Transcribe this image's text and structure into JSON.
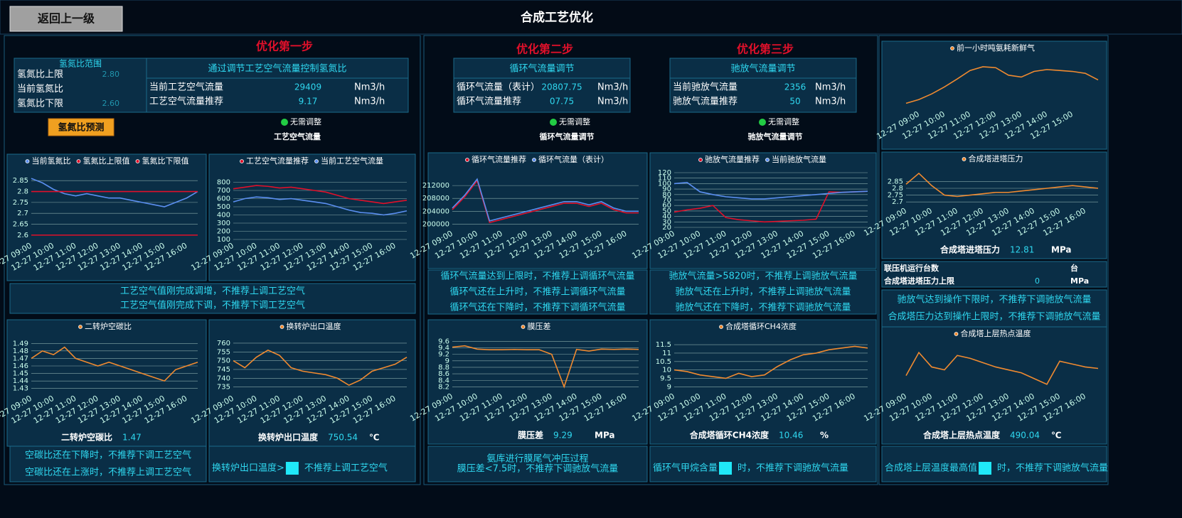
{
  "header": {
    "back_button": "返回上一级",
    "title": "合成工艺优化"
  },
  "step1": {
    "title": "优化第一步",
    "ratio_box": {
      "title": "氢氮比范围",
      "rows": [
        {
          "label": "氢氮比上限",
          "value": "2.80"
        },
        {
          "label": "当前氢氮比"
        },
        {
          "label": "氢氮比下限",
          "value": "2.60"
        }
      ]
    },
    "air_box": {
      "title": "通过调节工艺空气流量控制氢氮比",
      "rows": [
        {
          "label": "当前工艺空气流量",
          "value": "29409",
          "unit": "Nm3/h"
        },
        {
          "label": "工艺空气流量推荐",
          "value": "9.17",
          "unit": "Nm3/h"
        }
      ]
    },
    "predict_button": "氢氮比预测",
    "status": "无需调整",
    "status_label": "工艺空气流量"
  },
  "step2": {
    "title": "优化第二步",
    "box": {
      "title": "循环气流量调节",
      "rows": [
        {
          "label": "循环气流量（表计）",
          "value": "20807.75",
          "unit": "Nm3/h"
        },
        {
          "label": "循环气流量推荐",
          "value": "07.75",
          "unit": "Nm3/h"
        }
      ]
    },
    "status": "无需调整",
    "status_label": "循环气流量调节"
  },
  "step3": {
    "title": "优化第三步",
    "box": {
      "title": "驰放气流量调节",
      "rows": [
        {
          "label": "当前驰放气流量",
          "value": "2356",
          "unit": "Nm3/h"
        },
        {
          "label": "驰放气流量推荐",
          "value": "50",
          "unit": "Nm3/h"
        }
      ]
    },
    "status": "无需调整",
    "status_label": "驰放气流量调节"
  },
  "charts": [
    {
      "type": "line",
      "categories": [
        "12-27 09:00",
        null,
        "12-27 10:00",
        null,
        "12-27 11:00",
        null,
        "12-27 12:00",
        null,
        "12-27 13:00",
        null,
        "12-27 14:00",
        null,
        "12-27 15:00",
        null,
        "12-27 16:00",
        null
      ],
      "ylim": [
        2.58,
        2.88
      ],
      "yticks": [
        2.6,
        2.65,
        2.7,
        2.75,
        2.8,
        2.85
      ],
      "series": [
        {
          "name": "当前氢氮比",
          "color": "#5b8ff0",
          "values": [
            2.86,
            2.84,
            2.81,
            2.79,
            2.78,
            2.79,
            2.78,
            2.77,
            2.77,
            2.76,
            2.75,
            2.74,
            2.73,
            2.75,
            2.77,
            2.8
          ]
        },
        {
          "name": "氢氮比上限值",
          "color": "#e0102a",
          "values": [
            2.8,
            2.8,
            2.8,
            2.8,
            2.8,
            2.8,
            2.8,
            2.8,
            2.8,
            2.8,
            2.8,
            2.8,
            2.8,
            2.8,
            2.8,
            2.8
          ]
        },
        {
          "name": "氢氮比下限值",
          "color": "#e0102a",
          "values": [
            2.6,
            2.6,
            2.6,
            2.6,
            2.6,
            2.6,
            2.6,
            2.6,
            2.6,
            2.6,
            2.6,
            2.6,
            2.6,
            2.6,
            2.6,
            2.6
          ]
        }
      ]
    },
    {
      "type": "line",
      "categories": [
        "12-27 09:00",
        null,
        "12-27 10:00",
        null,
        "12-27 11:00",
        null,
        "12-27 12:00",
        null,
        "12-27 13:00",
        null,
        "12-27 14:00",
        null,
        "12-27 15:00",
        null,
        "12-27 16:00",
        null
      ],
      "ylim": [
        100,
        900
      ],
      "yticks": [
        100,
        200,
        300,
        400,
        500,
        600,
        700,
        800
      ],
      "series": [
        {
          "name": "工艺空气流量推荐",
          "color": "#e0102a",
          "values": [
            720,
            740,
            760,
            750,
            730,
            740,
            720,
            700,
            680,
            640,
            600,
            580,
            560,
            540,
            560,
            580
          ]
        },
        {
          "name": "当前工艺空气流量",
          "color": "#5b8ff0",
          "values": [
            560,
            600,
            620,
            610,
            590,
            600,
            580,
            560,
            540,
            500,
            460,
            430,
            420,
            400,
            420,
            450
          ]
        }
      ]
    },
    {
      "type": "line",
      "categories": [
        "12-27 09:00",
        null,
        "12-27 10:00",
        null,
        "12-27 11:00",
        null,
        "12-27 12:00",
        null,
        "12-27 13:00",
        null,
        "12-27 14:00",
        null,
        "12-27 15:00",
        null,
        "12-27 16:00",
        null
      ],
      "ylim": [
        199000,
        216000
      ],
      "yticks": [
        200000,
        204000,
        208000,
        212000
      ],
      "series": [
        {
          "name": "循环气流量推荐",
          "color": "#e0102a",
          "values": [
            204500,
            208500,
            213500,
            200500,
            201500,
            202500,
            203500,
            204500,
            205500,
            206500,
            206500,
            205500,
            206500,
            204500,
            203500,
            203500
          ]
        },
        {
          "name": "循环气流量（表计）",
          "color": "#5b8ff0",
          "values": [
            205000,
            209000,
            214000,
            201000,
            202000,
            203000,
            204000,
            205000,
            206000,
            207000,
            207000,
            206000,
            207000,
            205000,
            204000,
            204000
          ]
        }
      ]
    },
    {
      "type": "line",
      "categories": [
        "12-27 09:00",
        null,
        "12-27 10:00",
        null,
        "12-27 11:00",
        null,
        "12-27 12:00",
        null,
        "12-27 13:00",
        null,
        "12-27 14:00",
        null,
        "12-27 15:00",
        null,
        "12-27 16:00",
        null
      ],
      "ylim": [
        20,
        120
      ],
      "yticks": [
        20,
        30,
        40,
        50,
        60,
        70,
        80,
        90,
        100,
        110,
        120
      ],
      "series": [
        {
          "name": "驰放气流量推荐",
          "color": "#e0102a",
          "values": [
            48,
            52,
            55,
            60,
            38,
            34,
            32,
            30,
            31,
            32,
            33,
            35,
            85,
            84,
            85,
            86
          ]
        },
        {
          "name": "当前驰放气流量",
          "color": "#5b8ff0",
          "values": [
            100,
            102,
            85,
            80,
            76,
            74,
            72,
            72,
            74,
            76,
            78,
            80,
            82,
            84,
            85,
            86
          ]
        }
      ]
    },
    {
      "type": "line",
      "categories": [
        null,
        "12-27 09:00",
        null,
        "12-27 10:00",
        null,
        "12-27 11:00",
        null,
        "12-27 12:00",
        null,
        "12-27 13:00",
        null,
        "12-27 14:00",
        null,
        "12-27 15:00",
        null,
        null
      ],
      "ylim": [
        0,
        100
      ],
      "series": [
        {
          "name": "前一小时吨氨耗新鲜气",
          "color": "#f08a30",
          "values": [
            10,
            18,
            30,
            45,
            62,
            80,
            88,
            86,
            70,
            66,
            78,
            82,
            80,
            78,
            74,
            60
          ]
        }
      ]
    },
    {
      "type": "line",
      "categories": [
        "12-27 09:00",
        null,
        "12-27 10:00",
        null,
        "12-27 11:00",
        null,
        "12-27 12:00",
        null,
        "12-27 13:00",
        null,
        "12-27 14:00",
        null,
        "12-27 15:00",
        null,
        "12-27 16:00",
        null
      ],
      "ylim": [
        2.68,
        2.92
      ],
      "yticks": [
        2.7,
        2.75,
        2.8,
        2.85
      ],
      "series": [
        {
          "name": "合成塔进塔压力",
          "color": "#f08a30",
          "values": [
            2.83,
            2.91,
            2.82,
            2.75,
            2.74,
            2.75,
            2.76,
            2.77,
            2.77,
            2.78,
            2.79,
            2.8,
            2.81,
            2.82,
            2.81,
            2.8
          ]
        }
      ],
      "footer": {
        "label": "合成塔进塔压力",
        "value": "12.81",
        "unit": "MPa"
      }
    },
    {
      "type": "line",
      "categories": [
        "12-27 09:00",
        null,
        "12-27 10:00",
        null,
        "12-27 11:00",
        null,
        "12-27 12:00",
        null,
        "12-27 13:00",
        null,
        "12-27 14:00",
        null,
        "12-27 15:00",
        null,
        "12-27 16:00",
        null
      ],
      "ylim": [
        1.425,
        1.495
      ],
      "yticks": [
        1.43,
        1.44,
        1.45,
        1.46,
        1.47,
        1.48,
        1.49
      ],
      "series": [
        {
          "name": "二转炉空碳比",
          "color": "#f08a30",
          "values": [
            1.47,
            1.48,
            1.475,
            1.485,
            1.47,
            1.465,
            1.46,
            1.465,
            1.46,
            1.455,
            1.45,
            1.445,
            1.44,
            1.455,
            1.46,
            1.465
          ]
        }
      ],
      "footer": {
        "label": "二转炉空碳比",
        "value": "1.47"
      }
    },
    {
      "type": "line",
      "categories": [
        "12-27 09:00",
        null,
        "12-27 10:00",
        null,
        "12-27 11:00",
        null,
        "12-27 12:00",
        null,
        "12-27 13:00",
        null,
        "12-27 14:00",
        null,
        "12-27 15:00",
        null,
        "12-27 16:00",
        null
      ],
      "ylim": [
        732,
        762
      ],
      "yticks": [
        735,
        740,
        745,
        750,
        755,
        760
      ],
      "series": [
        {
          "name": "换转炉出口温度",
          "color": "#f08a30",
          "values": [
            750,
            746,
            752,
            756,
            753,
            746,
            744,
            743,
            742,
            740,
            736,
            739,
            744,
            746,
            748,
            752
          ]
        }
      ],
      "footer": {
        "label": "换转炉出口温度",
        "value": "750.54",
        "unit": "℃"
      }
    },
    {
      "type": "line",
      "categories": [
        "12-27 09:00",
        null,
        "12-27 10:00",
        null,
        "12-27 11:00",
        null,
        "12-27 12:00",
        null,
        "12-27 13:00",
        null,
        "12-27 14:00",
        null,
        "12-27 15:00",
        null,
        "12-27 16:00",
        null
      ],
      "ylim": [
        8.1,
        9.65
      ],
      "yticks": [
        8.2,
        8.4,
        8.6,
        8.8,
        9,
        9.2,
        9.4,
        9.6
      ],
      "series": [
        {
          "name": "膜压差",
          "color": "#f08a30",
          "values": [
            9.42,
            9.46,
            9.36,
            9.34,
            9.34,
            9.35,
            9.34,
            9.34,
            9.2,
            8.2,
            9.35,
            9.3,
            9.36,
            9.35,
            9.36,
            9.35
          ]
        }
      ],
      "footer": {
        "label": "膜压差",
        "value": "9.29",
        "unit": "MPa"
      }
    },
    {
      "type": "line",
      "categories": [
        "12-27 09:00",
        null,
        "12-27 10:00",
        null,
        "12-27 11:00",
        null,
        "12-27 12:00",
        null,
        "12-27 13:00",
        null,
        "12-27 14:00",
        null,
        "12-27 15:00",
        null,
        "12-27 16:00",
        null
      ],
      "ylim": [
        8.8,
        11.8
      ],
      "yticks": [
        9,
        9.5,
        10,
        10.5,
        11,
        11.5
      ],
      "series": [
        {
          "name": "合成塔循环CH4浓度",
          "color": "#f08a30",
          "values": [
            10,
            9.9,
            9.7,
            9.6,
            9.5,
            9.8,
            9.6,
            9.7,
            10.2,
            10.6,
            10.9,
            11,
            11.2,
            11.3,
            11.4,
            11.3
          ]
        }
      ],
      "footer": {
        "label": "合成塔循环CH4浓度",
        "value": "10.46",
        "unit": "%"
      }
    },
    {
      "type": "line",
      "categories": [
        "12-27 09:00",
        null,
        "12-27 10:00",
        null,
        "12-27 11:00",
        null,
        "12-27 12:00",
        null,
        "12-27 13:00",
        null,
        "12-27 14:00",
        null,
        "12-27 15:00",
        null,
        "12-27 16:00",
        null
      ],
      "ylim": [
        470,
        500
      ],
      "series": [
        {
          "name": "合成塔上层热点温度",
          "color": "#f08a30",
          "values": [
            480,
            496,
            486,
            484,
            494,
            492,
            489,
            486,
            484,
            482,
            478,
            474,
            490,
            488,
            486,
            485
          ]
        }
      ],
      "footer": {
        "label": "合成塔上层热点温度",
        "value": "490.04",
        "unit": "℃"
      }
    }
  ],
  "info": {
    "rows": [
      {
        "label": "联压机运行台数",
        "unit": "台"
      },
      {
        "label": "合成塔进塔压力上限",
        "value": "0",
        "unit": "MPa"
      }
    ]
  },
  "messages": [
    {
      "lines": [
        "工艺空气值刚完成调增，不推荐上调工艺空气",
        "工艺空气值刚完成下调，不推荐下调工艺空气"
      ]
    },
    {
      "lines": [
        "循环气流量达到上限时，不推荐上调循环气流量",
        "循环气还在上升时，不推荐上调循环气流量",
        "循环气还在下降时，不推荐下调循环气流量"
      ]
    },
    {
      "lines": [
        "驰放气流量>5820时，不推荐上调驰放气流量",
        "驰放气还在上升时，不推荐上调驰放气流量",
        "驰放气还在下降时，不推荐下调驰放气流量"
      ]
    },
    {
      "lines": [
        "驰放气达到操作下限时，不推荐下调驰放气流量",
        "合成塔压力达到操作上限时，不推荐下调驰放气流量"
      ]
    },
    {
      "lines": [
        "空碳比还在下降时，不推荐下调工艺空气",
        "空碳比还在上涨时，不推荐上调工艺空气"
      ]
    },
    {
      "parts": [
        "换转炉出口温度>",
        "不推荐上调工艺空气"
      ]
    },
    {
      "lines": [
        "氨库进行膜尾气冲压过程",
        "膜压差<7.5时，不推荐下调驰放气流量"
      ]
    },
    {
      "parts": [
        "循环气甲烷含量",
        "时，不推荐下调驰放气流量"
      ]
    },
    {
      "parts": [
        "合成塔上层温度最高值",
        "时，不推荐下调驰放气流量"
      ]
    }
  ]
}
